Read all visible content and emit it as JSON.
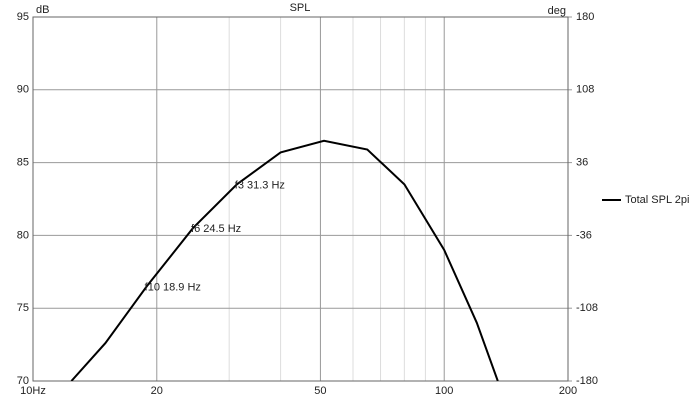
{
  "chart_data": {
    "type": "line",
    "title": "SPL",
    "y_label": "dB",
    "y2_label": "deg",
    "x": [
      12.4,
      15,
      18.9,
      24.5,
      31.3,
      40,
      51,
      65,
      80,
      100,
      120,
      135
    ],
    "series": [
      {
        "name": "Total SPL 2pi",
        "color": "#000000",
        "values": [
          70,
          72.6,
          76.5,
          80.5,
          83.5,
          85.7,
          86.5,
          85.9,
          83.5,
          79,
          74,
          70
        ]
      }
    ],
    "xscale": "log",
    "xlim": [
      10,
      200
    ],
    "xticks": [
      {
        "value": 10,
        "label": "10Hz"
      },
      20,
      50,
      100,
      200
    ],
    "xminorticks": [
      30,
      40,
      60,
      70,
      80,
      90
    ],
    "ylim": [
      70,
      95
    ],
    "yticks": [
      70,
      75,
      80,
      85,
      90,
      95
    ],
    "y2lim": [
      -180,
      180
    ],
    "y2ticks": [
      -180,
      -108,
      -36,
      36,
      108,
      180
    ],
    "grid": true,
    "legend": "right",
    "annotations": [
      {
        "text": "f3 31.3 Hz",
        "x": 31.3,
        "y": 83.5
      },
      {
        "text": "f6 24.5 Hz",
        "x": 24.5,
        "y": 80.5
      },
      {
        "text": "f10 18.9 Hz",
        "x": 18.9,
        "y": 76.5
      }
    ]
  }
}
